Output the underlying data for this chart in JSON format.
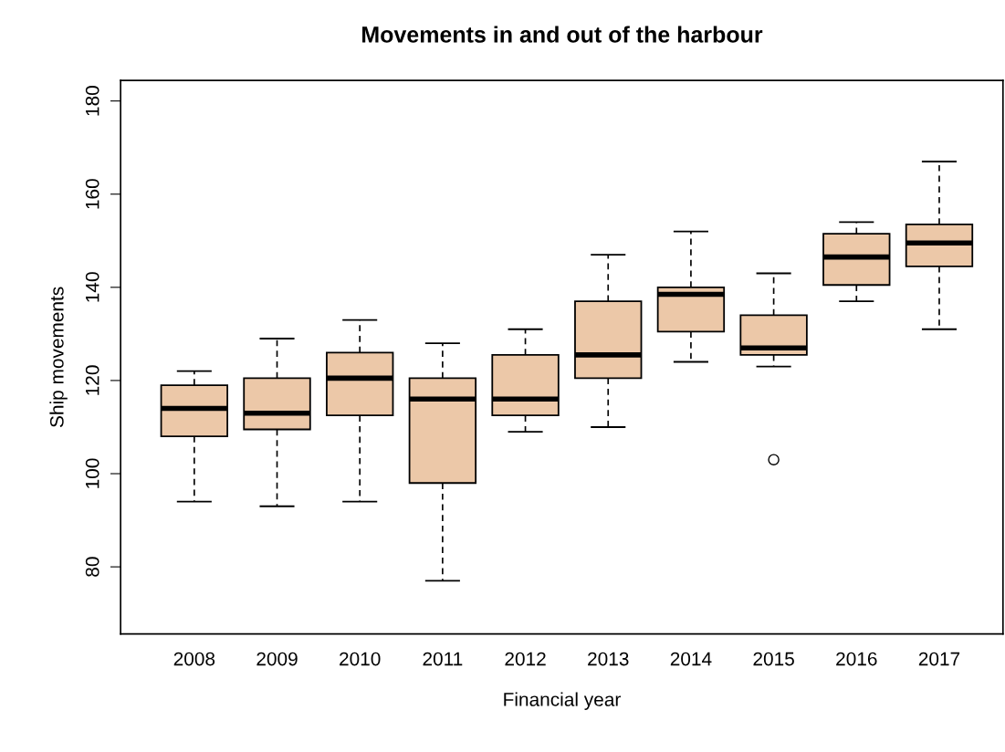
{
  "chart_data": {
    "type": "box",
    "title": "Movements in and out of the harbour",
    "xlabel": "Financial year",
    "ylabel": "Ship movements",
    "categories": [
      "2008",
      "2009",
      "2010",
      "2011",
      "2012",
      "2013",
      "2014",
      "2015",
      "2016",
      "2017"
    ],
    "color": "#ecc8a8",
    "boxes": [
      {
        "low": 94,
        "q1": 108,
        "median": 114,
        "q3": 119,
        "high": 122
      },
      {
        "low": 93,
        "q1": 109.5,
        "median": 113,
        "q3": 120.5,
        "high": 129
      },
      {
        "low": 94,
        "q1": 112.5,
        "median": 120.5,
        "q3": 126,
        "high": 133
      },
      {
        "low": 77,
        "q1": 98,
        "median": 116,
        "q3": 120.5,
        "high": 128
      },
      {
        "low": 109,
        "q1": 112.5,
        "median": 116,
        "q3": 125.5,
        "high": 131
      },
      {
        "low": 110,
        "q1": 120.5,
        "median": 125.5,
        "q3": 137,
        "high": 147
      },
      {
        "low": 124,
        "q1": 130.5,
        "median": 138.5,
        "q3": 140,
        "high": 152
      },
      {
        "low": 123,
        "q1": 125.5,
        "median": 127,
        "q3": 134,
        "high": 143,
        "outliers": [
          103
        ]
      },
      {
        "low": 137,
        "q1": 140.5,
        "median": 146.5,
        "q3": 151.5,
        "high": 154
      },
      {
        "low": 131,
        "q1": 144.5,
        "median": 149.5,
        "q3": 153.5,
        "high": 167
      }
    ],
    "ylim": [
      65.6,
      184.4
    ],
    "yticks": [
      80,
      100,
      120,
      140,
      160,
      180
    ],
    "grid": false
  }
}
